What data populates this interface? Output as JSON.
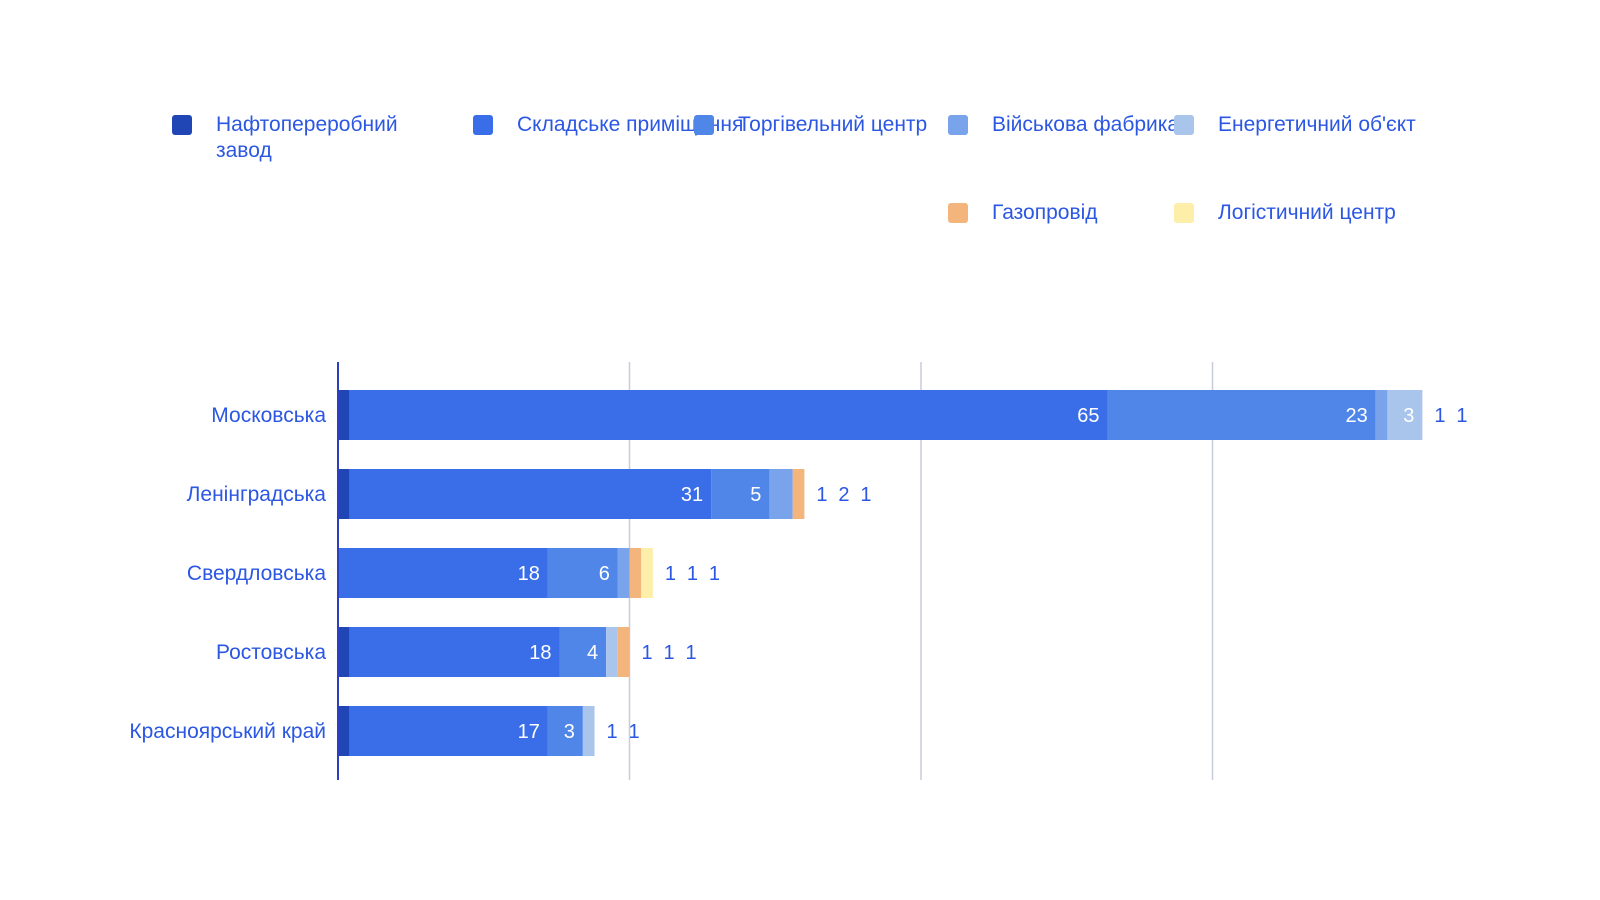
{
  "colors": {
    "label_text": "#2b57e3",
    "gridline": "#c9ccdb",
    "axis": "#2b3fc0"
  },
  "chart_data": {
    "type": "bar",
    "orientation": "horizontal",
    "stacked": true,
    "title": "",
    "xlabel": "",
    "ylabel": "",
    "xlim": [
      0,
      110
    ],
    "grid": true,
    "legend_position": "top",
    "categories": [
      "Московська",
      "Ленінградська",
      "Свердловська",
      "Ростовська",
      "Красноярський край"
    ],
    "series": [
      {
        "name": "Нафтопереробний завод",
        "color": "#1f46b4",
        "values": [
          1,
          1,
          0,
          1,
          1
        ]
      },
      {
        "name": "Складське приміщення",
        "color": "#3a6ee8",
        "values": [
          65,
          31,
          18,
          18,
          17
        ]
      },
      {
        "name": "Торгівельний центр",
        "color": "#4f86e8",
        "values": [
          23,
          5,
          6,
          4,
          3
        ]
      },
      {
        "name": "Військова фабрика",
        "color": "#79a3ea",
        "values": [
          1,
          2,
          1,
          0,
          0
        ]
      },
      {
        "name": "Енергетичний об'єкт",
        "color": "#aac5ec",
        "values": [
          3,
          0,
          0,
          1,
          1
        ]
      },
      {
        "name": "Газопровід",
        "color": "#f4b57c",
        "values": [
          0,
          1,
          1,
          1,
          0
        ]
      },
      {
        "name": "Логістичний центр",
        "color": "#fdeeaa",
        "values": [
          0,
          0,
          1,
          0,
          0
        ]
      }
    ]
  }
}
